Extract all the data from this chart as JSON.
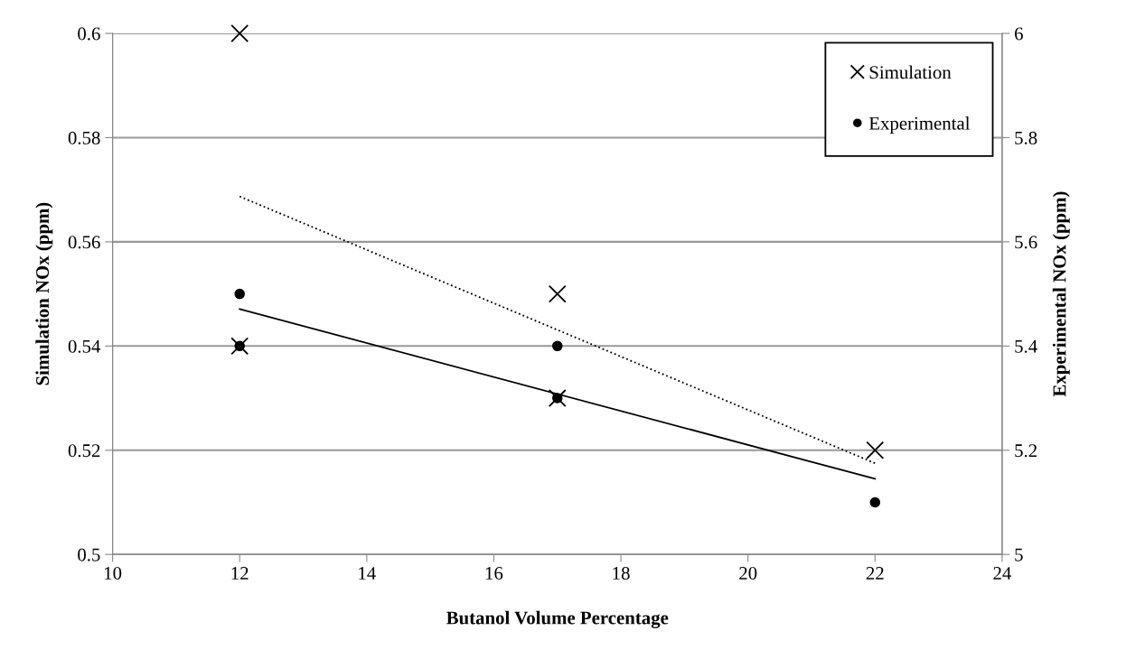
{
  "chart_data": {
    "type": "scatter",
    "xlabel": "Butanol Volume Percentage",
    "ylabel": "Simulation NOx (ppm)",
    "y2label": "Experimental NOx (ppm)",
    "xlim": [
      10,
      24
    ],
    "xticks": [
      10,
      12,
      14,
      16,
      18,
      20,
      22,
      24
    ],
    "ylim": [
      0.5,
      0.6
    ],
    "yticks": [
      {
        "value": 0.5,
        "label": "0.5"
      },
      0.52,
      0.54,
      0.56,
      0.58,
      {
        "value": 0.6,
        "label": "0.6"
      }
    ],
    "y2lim": [
      5,
      6
    ],
    "y2ticks": [
      5,
      5.2,
      5.4,
      5.6,
      5.8,
      6
    ],
    "grid": "y",
    "legend": "top right",
    "series": [
      {
        "name": "Simulation",
        "marker": "cross",
        "color": "#000000",
        "x": [
          12,
          12,
          17,
          17,
          22
        ],
        "values": [
          0.6,
          0.54,
          0.55,
          0.53,
          0.52
        ]
      },
      {
        "name": "Experimental",
        "marker": "circle",
        "color": "#000000",
        "axis": "y2",
        "x": [
          12,
          12,
          17,
          17,
          22
        ],
        "values": [
          5.5,
          5.4,
          5.4,
          5.3,
          5.1
        ]
      },
      {
        "type": "line",
        "line_style": "dotted",
        "color": "#000000",
        "x": [
          12,
          22
        ],
        "values": [
          0.5687,
          0.5175
        ]
      },
      {
        "type": "line",
        "line_style": "solid",
        "color": "#000000",
        "x": [
          12,
          22
        ],
        "values": [
          0.5471,
          0.5145
        ]
      }
    ]
  }
}
